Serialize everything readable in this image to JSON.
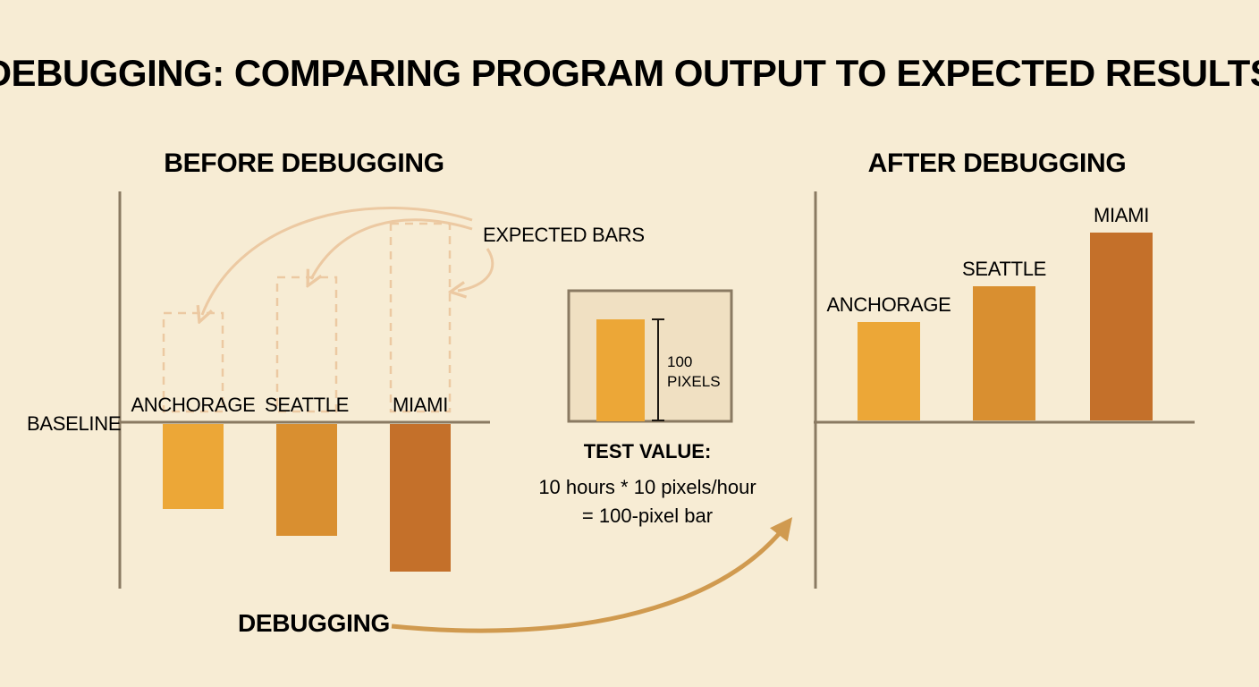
{
  "title": "DEBUGGING: COMPARING PROGRAM OUTPUT TO EXPECTED RESULTS",
  "colors": {
    "background": "#f7ecd4",
    "anchorage": "#eca737",
    "seattle": "#d98f30",
    "miami": "#c4702a",
    "expected_outline": "#ecc9a2",
    "arrow": "#d09a4f",
    "panel": "#f0e0c2"
  },
  "before": {
    "heading": "BEFORE DEBUGGING",
    "baseline_label": "BASELINE",
    "expected_label": "EXPECTED BARS",
    "bars": [
      {
        "city": "ANCHORAGE",
        "drawn_value": -9.5,
        "expected_value": 11
      },
      {
        "city": "SEATTLE",
        "drawn_value": -12.5,
        "expected_value": 15
      },
      {
        "city": "MIAMI",
        "drawn_value": -16.5,
        "expected_value": 21
      }
    ]
  },
  "test": {
    "measure_value": "100",
    "measure_unit": "PIXELS",
    "title": "TEST VALUE:",
    "line1": "10 hours * 10 pixels/hour",
    "line2": "= 100-pixel bar"
  },
  "transition_label": "DEBUGGING",
  "after": {
    "heading": "AFTER DEBUGGING",
    "bars": [
      {
        "city": "ANCHORAGE",
        "value": 11
      },
      {
        "city": "SEATTLE",
        "value": 15
      },
      {
        "city": "MIAMI",
        "value": 21
      }
    ]
  }
}
